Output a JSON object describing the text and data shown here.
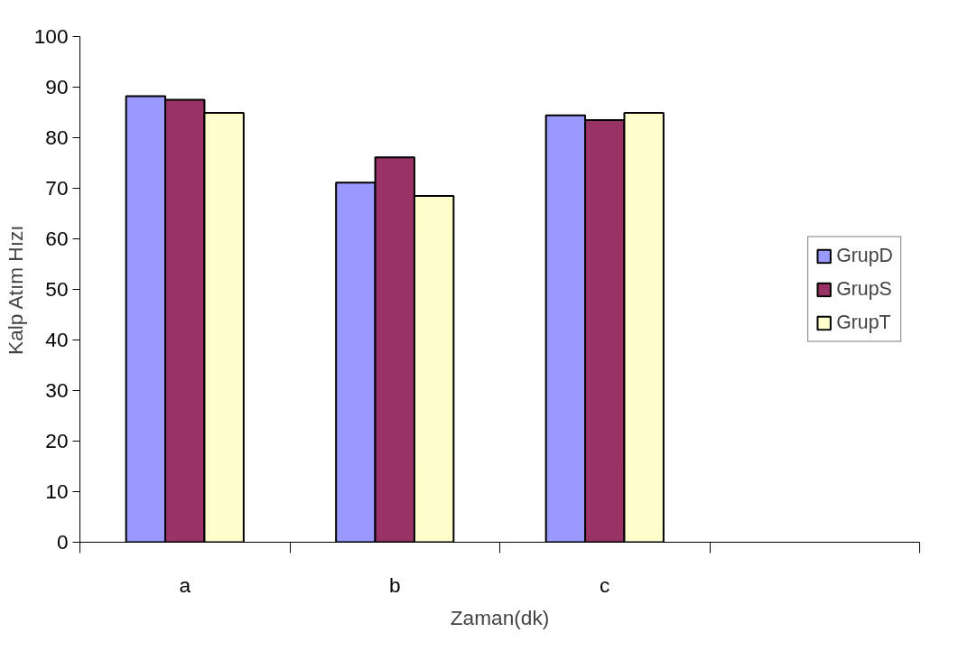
{
  "chart_data": {
    "type": "bar",
    "xlabel": "Zaman(dk)",
    "ylabel": "Kalp Atım Hızı",
    "categories": [
      "a",
      "b",
      "c",
      null
    ],
    "series": [
      {
        "name": "GrupD",
        "color": "#9999ff",
        "values": [
          88.2,
          71.1,
          84.4,
          null
        ]
      },
      {
        "name": "GrupS",
        "color": "#993366",
        "values": [
          87.5,
          76.1,
          83.5,
          null
        ]
      },
      {
        "name": "GrupT",
        "color": "#ffffcc",
        "values": [
          84.9,
          68.5,
          84.9,
          null
        ]
      }
    ],
    "ylim": [
      0,
      100
    ],
    "yticks": [
      0,
      10,
      20,
      30,
      40,
      50,
      60,
      70,
      80,
      90,
      100
    ],
    "grid": false,
    "legend": "right"
  }
}
